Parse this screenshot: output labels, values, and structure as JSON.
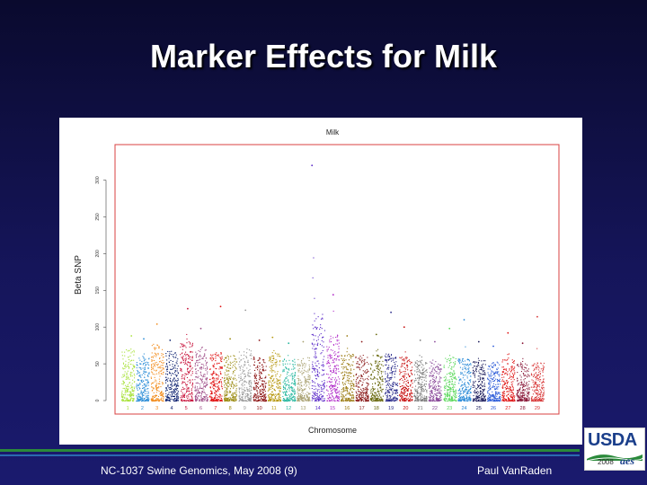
{
  "slide": {
    "title": "Marker Effects for Milk",
    "footer_left": "NC-1037 Swine Genomics, May 2008 (9)",
    "footer_right": "Paul VanRaden",
    "logo_text": "USDA",
    "logo_year": "2008",
    "logo_mark": "aes"
  },
  "colors": {
    "background": "#0e0e40",
    "plot_border": "#d84040",
    "footer_green": "#2a8a3a",
    "footer_blue": "#2a6ab0"
  },
  "chart_data": {
    "type": "scatter",
    "title": "Milk",
    "xlabel": "Chromosome",
    "ylabel": "Beta SNP",
    "ylim": [
      0,
      330
    ],
    "yticks": [
      0,
      50,
      100,
      150,
      200,
      250,
      300
    ],
    "categories": [
      "1",
      "2",
      "3",
      "4",
      "5",
      "6",
      "7",
      "8",
      "9",
      "10",
      "11",
      "12",
      "13",
      "14",
      "15",
      "16",
      "17",
      "18",
      "19",
      "20",
      "21",
      "22",
      "23",
      "24",
      "25",
      "26",
      "27",
      "28",
      "29"
    ],
    "series": [
      {
        "chromosome": "1",
        "color": "#a8e23a",
        "typical_max": 72,
        "peak": 88,
        "peak_pos": 0.75
      },
      {
        "chromosome": "2",
        "color": "#2f8fd8",
        "typical_max": 62,
        "peak": 84,
        "peak_pos": 0.6
      },
      {
        "chromosome": "3",
        "color": "#f28c1c",
        "typical_max": 78,
        "peak": 104,
        "peak_pos": 0.5
      },
      {
        "chromosome": "4",
        "color": "#0b1f6e",
        "typical_max": 68,
        "peak": 82,
        "peak_pos": 0.4
      },
      {
        "chromosome": "5",
        "color": "#c8143c",
        "typical_max": 80,
        "peak": 125,
        "peak_pos": 0.6
      },
      {
        "chromosome": "6",
        "color": "#a0508a",
        "typical_max": 70,
        "peak": 98,
        "peak_pos": 0.5
      },
      {
        "chromosome": "7",
        "color": "#e01010",
        "typical_max": 66,
        "peak": 128,
        "peak_pos": 0.85
      },
      {
        "chromosome": "8",
        "color": "#9a8a10",
        "typical_max": 62,
        "peak": 84,
        "peak_pos": 0.5
      },
      {
        "chromosome": "9",
        "color": "#9a9a9a",
        "typical_max": 70,
        "peak": 123,
        "peak_pos": 0.55
      },
      {
        "chromosome": "10",
        "color": "#8a1010",
        "typical_max": 60,
        "peak": 82,
        "peak_pos": 0.5
      },
      {
        "chromosome": "11",
        "color": "#b89a14",
        "typical_max": 66,
        "peak": 86,
        "peak_pos": 0.4
      },
      {
        "chromosome": "12",
        "color": "#2ab8a0",
        "typical_max": 58,
        "peak": 78,
        "peak_pos": 0.5
      },
      {
        "chromosome": "13",
        "color": "#a8a070",
        "typical_max": 60,
        "peak": 80,
        "peak_pos": 0.5
      },
      {
        "chromosome": "14",
        "color": "#5a2ac8",
        "typical_max": 120,
        "peak": 320,
        "peak_pos": 0.1
      },
      {
        "chromosome": "15",
        "color": "#b02ac8",
        "typical_max": 90,
        "peak": 144,
        "peak_pos": 0.55
      },
      {
        "chromosome": "16",
        "color": "#9a7a10",
        "typical_max": 64,
        "peak": 88,
        "peak_pos": 0.5
      },
      {
        "chromosome": "17",
        "color": "#8a1a1a",
        "typical_max": 62,
        "peak": 80,
        "peak_pos": 0.5
      },
      {
        "chromosome": "18",
        "color": "#6a6a10",
        "typical_max": 64,
        "peak": 90,
        "peak_pos": 0.5
      },
      {
        "chromosome": "19",
        "color": "#2a2a8a",
        "typical_max": 66,
        "peak": 120,
        "peak_pos": 0.5
      },
      {
        "chromosome": "20",
        "color": "#c81414",
        "typical_max": 60,
        "peak": 100,
        "peak_pos": 0.4
      },
      {
        "chromosome": "21",
        "color": "#7a7a7a",
        "typical_max": 56,
        "peak": 82,
        "peak_pos": 0.5
      },
      {
        "chromosome": "22",
        "color": "#8a4a9a",
        "typical_max": 56,
        "peak": 80,
        "peak_pos": 0.5
      },
      {
        "chromosome": "23",
        "color": "#5ad85a",
        "typical_max": 60,
        "peak": 98,
        "peak_pos": 0.5
      },
      {
        "chromosome": "24",
        "color": "#2a8ad8",
        "typical_max": 58,
        "peak": 110,
        "peak_pos": 0.5
      },
      {
        "chromosome": "25",
        "color": "#1a1a5a",
        "typical_max": 56,
        "peak": 80,
        "peak_pos": 0.5
      },
      {
        "chromosome": "26",
        "color": "#2a5ad8",
        "typical_max": 54,
        "peak": 74,
        "peak_pos": 0.5
      },
      {
        "chromosome": "27",
        "color": "#e01a1a",
        "typical_max": 56,
        "peak": 92,
        "peak_pos": 0.5
      },
      {
        "chromosome": "28",
        "color": "#8a1a3a",
        "typical_max": 52,
        "peak": 78,
        "peak_pos": 0.5
      },
      {
        "chromosome": "29",
        "color": "#d83a3a",
        "typical_max": 52,
        "peak": 114,
        "peak_pos": 0.5
      }
    ]
  }
}
